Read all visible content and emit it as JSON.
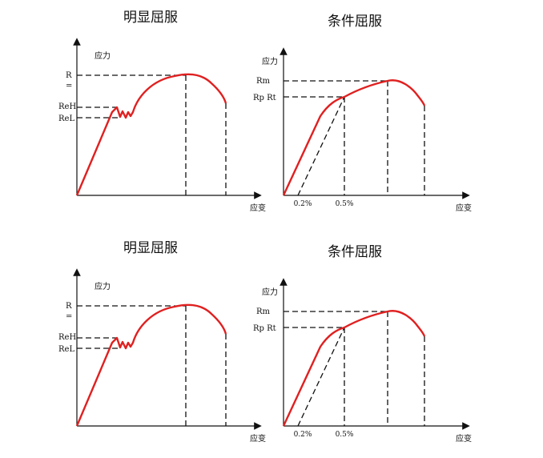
{
  "colors": {
    "curve": "#e02020",
    "axis": "#111111",
    "guide": "#111111"
  },
  "panels": [
    {
      "kind": "obvious",
      "title": "明显屈服",
      "y_axis_label": "应力",
      "x_axis_label": "应变",
      "labels": {
        "rm_top": "R",
        "rm_bottom": "=",
        "reh": "ReH",
        "rel": "ReL"
      }
    },
    {
      "kind": "conditional",
      "title": "条件屈服",
      "y_axis_label": "应力",
      "x_axis_label": "应变",
      "labels": {
        "rm": "Rm",
        "rp": "Rp Rt"
      },
      "ticks": [
        "0.2%",
        "0.5%"
      ]
    },
    {
      "kind": "obvious",
      "title": "明显屈服",
      "y_axis_label": "应力",
      "x_axis_label": "应变",
      "labels": {
        "rm_top": "R",
        "rm_bottom": "=",
        "reh": "ReH",
        "rel": "ReL"
      }
    },
    {
      "kind": "conditional",
      "title": "条件屈服",
      "y_axis_label": "应力",
      "x_axis_label": "应变",
      "labels": {
        "rm": "Rm",
        "rp": "Rp Rt"
      },
      "ticks": [
        "0.2%",
        "0.5%"
      ]
    }
  ]
}
